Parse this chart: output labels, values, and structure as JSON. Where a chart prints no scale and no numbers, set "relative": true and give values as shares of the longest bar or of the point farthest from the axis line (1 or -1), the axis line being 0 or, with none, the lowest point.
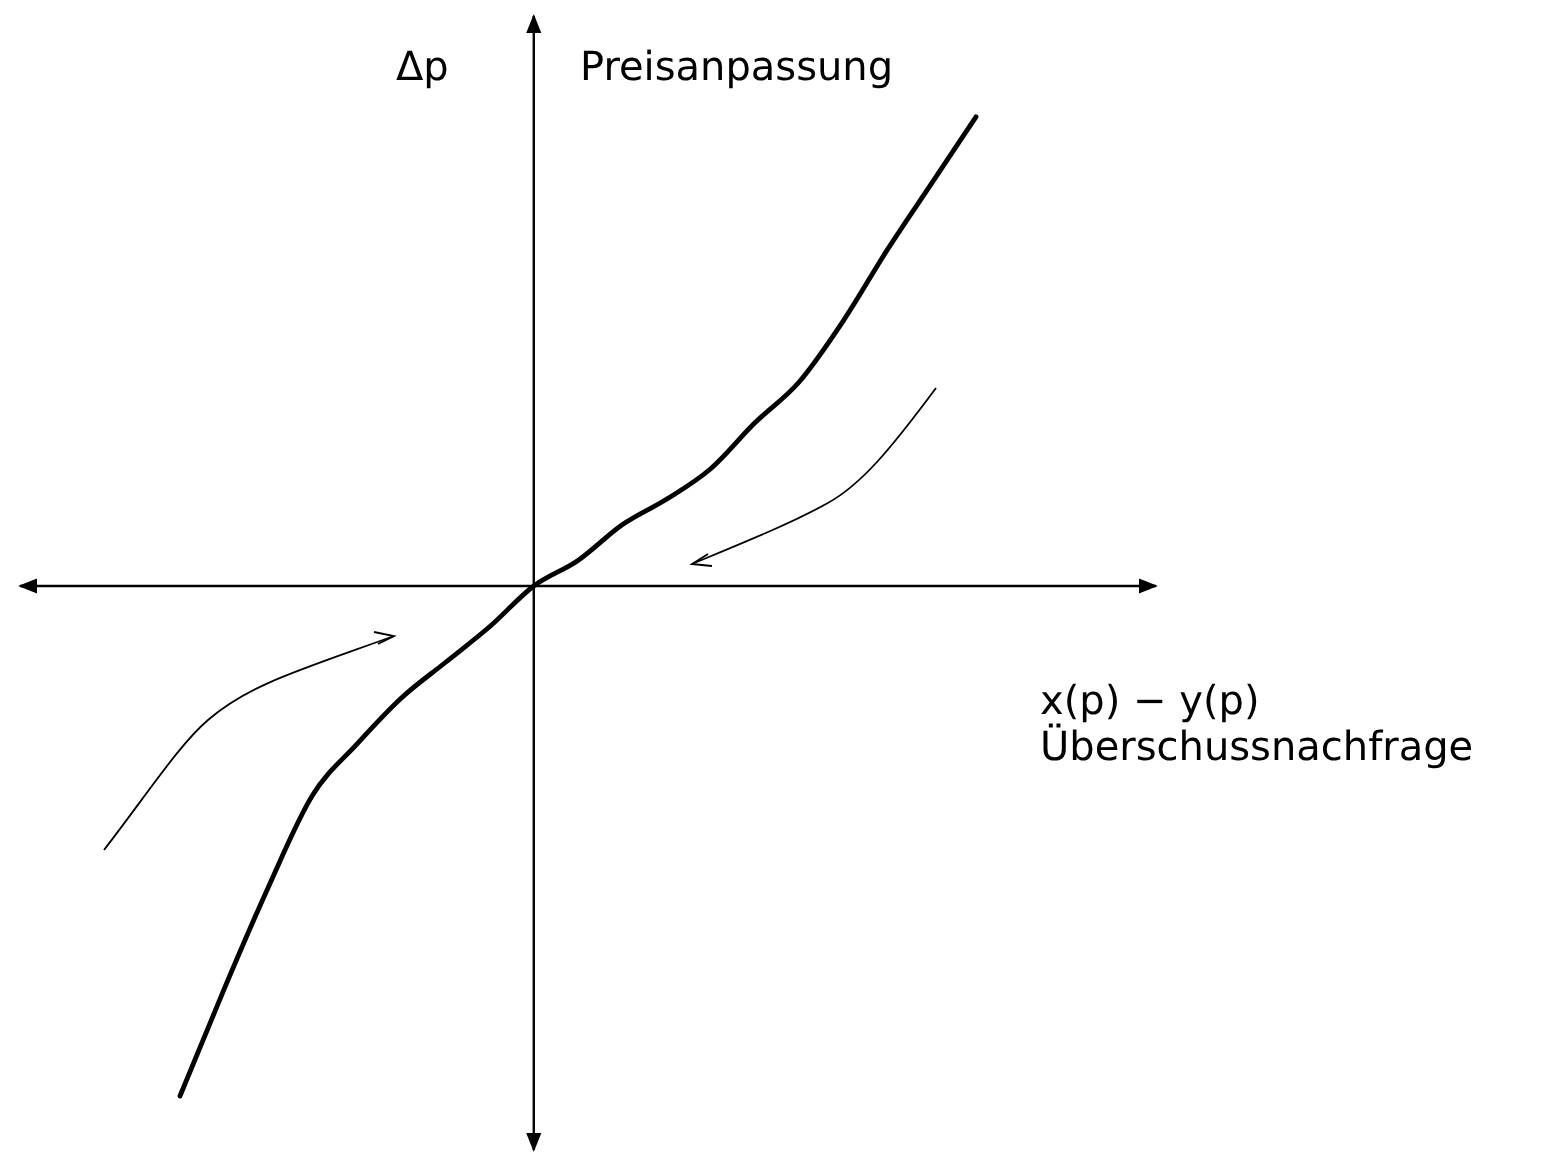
{
  "chart_data": {
    "type": "line",
    "relative": true,
    "xlabel": "x(p) − y(p)",
    "ylabel": "Δp",
    "annotations": [
      "Preisanpassung",
      "Überschussnachfrage"
    ],
    "categories": [
      null,
      null,
      null,
      null,
      null,
      null,
      null,
      null,
      null,
      null,
      null,
      null,
      null,
      null,
      null,
      null,
      null,
      null,
      null
    ],
    "series": [
      {
        "color": "#000000",
        "line_style": "solid",
        "values": [
          -1,
          -0.79,
          -0.59,
          -0.41,
          -0.31,
          -0.22,
          -0.15,
          -0.08,
          0,
          0.05,
          0.12,
          0.17,
          0.23,
          0.32,
          0.4,
          0.52,
          0.66,
          0.79,
          0.92
        ]
      }
    ]
  }
}
